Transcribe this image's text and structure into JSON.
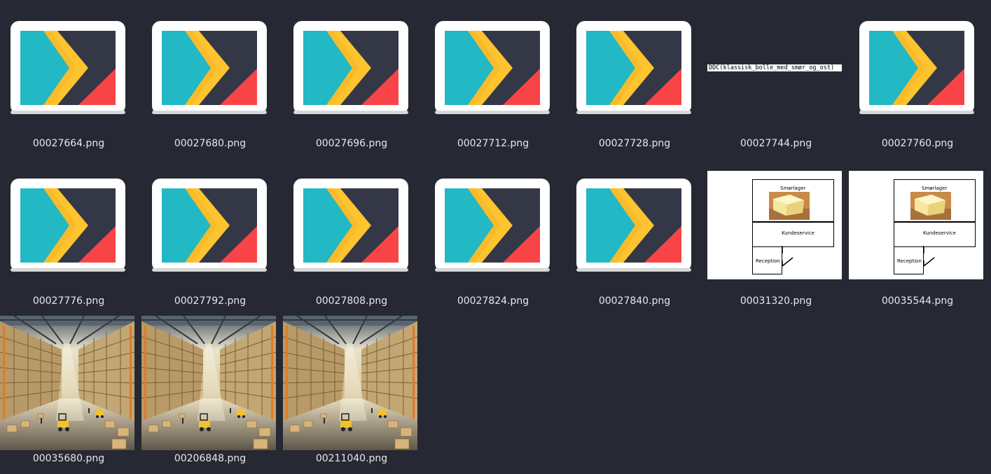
{
  "files": [
    {
      "name": "00027664.png",
      "type": "app-icon"
    },
    {
      "name": "00027680.png",
      "type": "app-icon"
    },
    {
      "name": "00027696.png",
      "type": "app-icon"
    },
    {
      "name": "00027712.png",
      "type": "app-icon"
    },
    {
      "name": "00027728.png",
      "type": "app-icon"
    },
    {
      "name": "00027744.png",
      "type": "text-strip",
      "strip_text": "DDC(klassisk_bolle_med_smør_og_ost)"
    },
    {
      "name": "00027760.png",
      "type": "app-icon"
    },
    {
      "name": "00027776.png",
      "type": "app-icon"
    },
    {
      "name": "00027792.png",
      "type": "app-icon"
    },
    {
      "name": "00027808.png",
      "type": "app-icon"
    },
    {
      "name": "00027824.png",
      "type": "app-icon"
    },
    {
      "name": "00027840.png",
      "type": "app-icon"
    },
    {
      "name": "00031320.png",
      "type": "floorplan",
      "rooms": {
        "top": "Smørlager",
        "middle": "Kundeservice",
        "bottom": "Reception"
      }
    },
    {
      "name": "00035544.png",
      "type": "floorplan",
      "rooms": {
        "top": "Smørlager",
        "middle": "Kundeservice",
        "bottom": "Reception"
      }
    },
    {
      "name": "00035680.png",
      "type": "warehouse"
    },
    {
      "name": "00206848.png",
      "type": "warehouse"
    },
    {
      "name": "00211040.png",
      "type": "warehouse"
    }
  ],
  "colors": {
    "background": "#262833",
    "icon_teal": "#22b8c4",
    "icon_yellow": "#fdc42f",
    "icon_dark": "#343746",
    "icon_red": "#f84447"
  }
}
